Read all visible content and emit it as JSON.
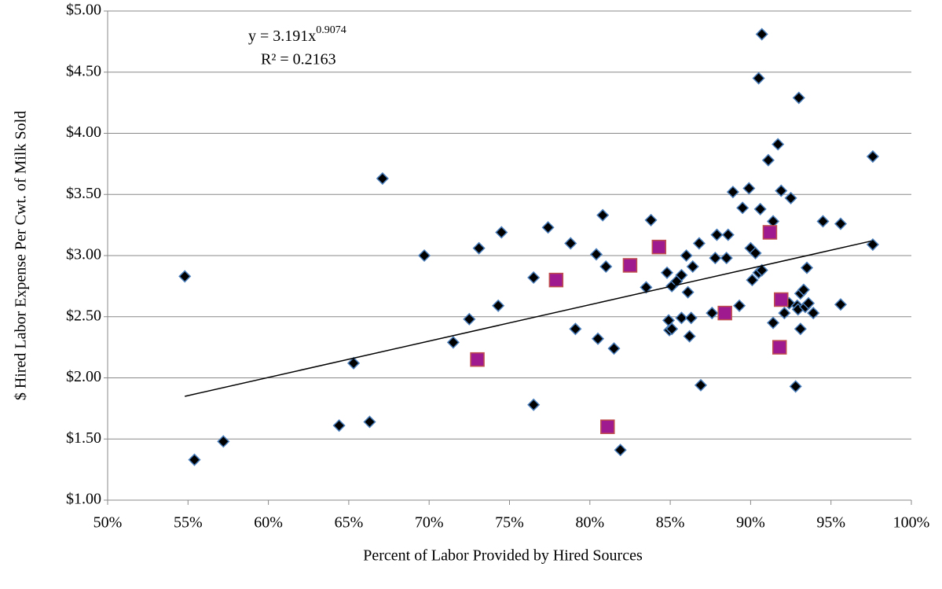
{
  "chart_data": {
    "type": "scatter",
    "x_label": "Percent of Labor Provided by Hired Sources",
    "y_label": "$ Hired Labor Expense Per Cwt. of Milk Sold",
    "equation_label": "y = 3.191x",
    "exponent_label": "0.9074",
    "r2_label": "R² = 0.2163",
    "trendline": {
      "a": 3.191,
      "b": 0.9074,
      "x": [
        54.8,
        97.5
      ],
      "color": "#000000"
    },
    "xlim": [
      50,
      100
    ],
    "xticks": [
      {
        "value": 50,
        "label": "50%"
      },
      {
        "value": 55,
        "label": "55%"
      },
      {
        "value": 60,
        "label": "60%"
      },
      {
        "value": 65,
        "label": "65%"
      },
      {
        "value": 70,
        "label": "70%"
      },
      {
        "value": 75,
        "label": "75%"
      },
      {
        "value": 80,
        "label": "80%"
      },
      {
        "value": 85,
        "label": "85%"
      },
      {
        "value": 90,
        "label": "90%"
      },
      {
        "value": 95,
        "label": "95%"
      },
      {
        "value": 100,
        "label": "100%"
      }
    ],
    "ylim": [
      1,
      5
    ],
    "yticks": [
      {
        "value": 1,
        "label": "$1.00"
      },
      {
        "value": 1.5,
        "label": "$1.50"
      },
      {
        "value": 2,
        "label": "$2.00"
      },
      {
        "value": 2.5,
        "label": "$2.50"
      },
      {
        "value": 3,
        "label": "$3.00"
      },
      {
        "value": 3.5,
        "label": "$3.50"
      },
      {
        "value": 4,
        "label": "$4.00"
      },
      {
        "value": 4.5,
        "label": "$4.50"
      },
      {
        "value": 5,
        "label": "$5.00"
      }
    ],
    "grid": true,
    "series": [
      {
        "color": "#000000",
        "edge": "#4a7ebb",
        "marker": "diamond",
        "x": [
          54.8,
          55.4,
          57.2,
          64.4,
          65.3,
          66.3,
          67.1,
          69.7,
          71.5,
          72.5,
          73.1,
          74.3,
          74.5,
          76.5,
          76.5,
          77.4,
          78.8,
          79.1,
          80.4,
          80.5,
          80.8,
          81.0,
          81.5,
          81.9,
          83.5,
          83.8,
          84.8,
          84.9,
          84.95,
          85.1,
          85.1,
          85.4,
          85.7,
          85.7,
          86.0,
          86.1,
          86.2,
          86.3,
          86.4,
          86.8,
          86.9,
          87.6,
          87.8,
          87.9,
          88.5,
          88.6,
          88.9,
          89.3,
          89.5,
          89.9,
          90.0,
          90.1,
          90.3,
          90.5,
          90.7,
          90.6,
          90.5,
          90.7,
          91.1,
          91.4,
          91.4,
          91.7,
          91.9,
          92.1,
          92.5,
          92.4,
          92.9,
          92.95,
          92.8,
          93.1,
          93.0,
          93.1,
          93.3,
          93.5,
          93.4,
          93.6,
          93.9,
          94.5,
          95.6,
          95.6,
          97.6,
          97.6
        ],
        "values": [
          2.83,
          1.33,
          1.48,
          1.61,
          2.12,
          1.64,
          3.63,
          3.0,
          2.29,
          2.48,
          3.06,
          2.59,
          3.19,
          2.82,
          1.78,
          3.23,
          3.1,
          2.4,
          3.01,
          2.32,
          3.33,
          2.91,
          2.24,
          1.41,
          2.74,
          3.29,
          2.86,
          2.47,
          2.39,
          2.4,
          2.75,
          2.79,
          2.49,
          2.84,
          3.0,
          2.7,
          2.34,
          2.49,
          2.91,
          3.1,
          1.94,
          2.53,
          2.98,
          3.17,
          2.98,
          3.17,
          3.52,
          2.59,
          3.39,
          3.55,
          3.06,
          2.8,
          3.02,
          2.86,
          2.88,
          3.38,
          4.45,
          4.81,
          3.78,
          3.28,
          2.45,
          3.91,
          3.53,
          2.53,
          3.47,
          2.61,
          2.59,
          2.56,
          1.93,
          2.4,
          4.29,
          2.69,
          2.72,
          2.9,
          2.58,
          2.61,
          2.53,
          3.28,
          3.26,
          2.6,
          3.81,
          3.09
        ]
      },
      {
        "color": "#9e1a8e",
        "edge": "#c0504d",
        "marker": "square",
        "x": [
          73.0,
          77.9,
          81.1,
          82.5,
          84.3,
          88.4,
          91.2,
          91.9,
          91.8
        ],
        "values": [
          2.15,
          2.8,
          1.6,
          2.92,
          3.07,
          2.53,
          3.19,
          2.64,
          2.25
        ]
      }
    ]
  }
}
